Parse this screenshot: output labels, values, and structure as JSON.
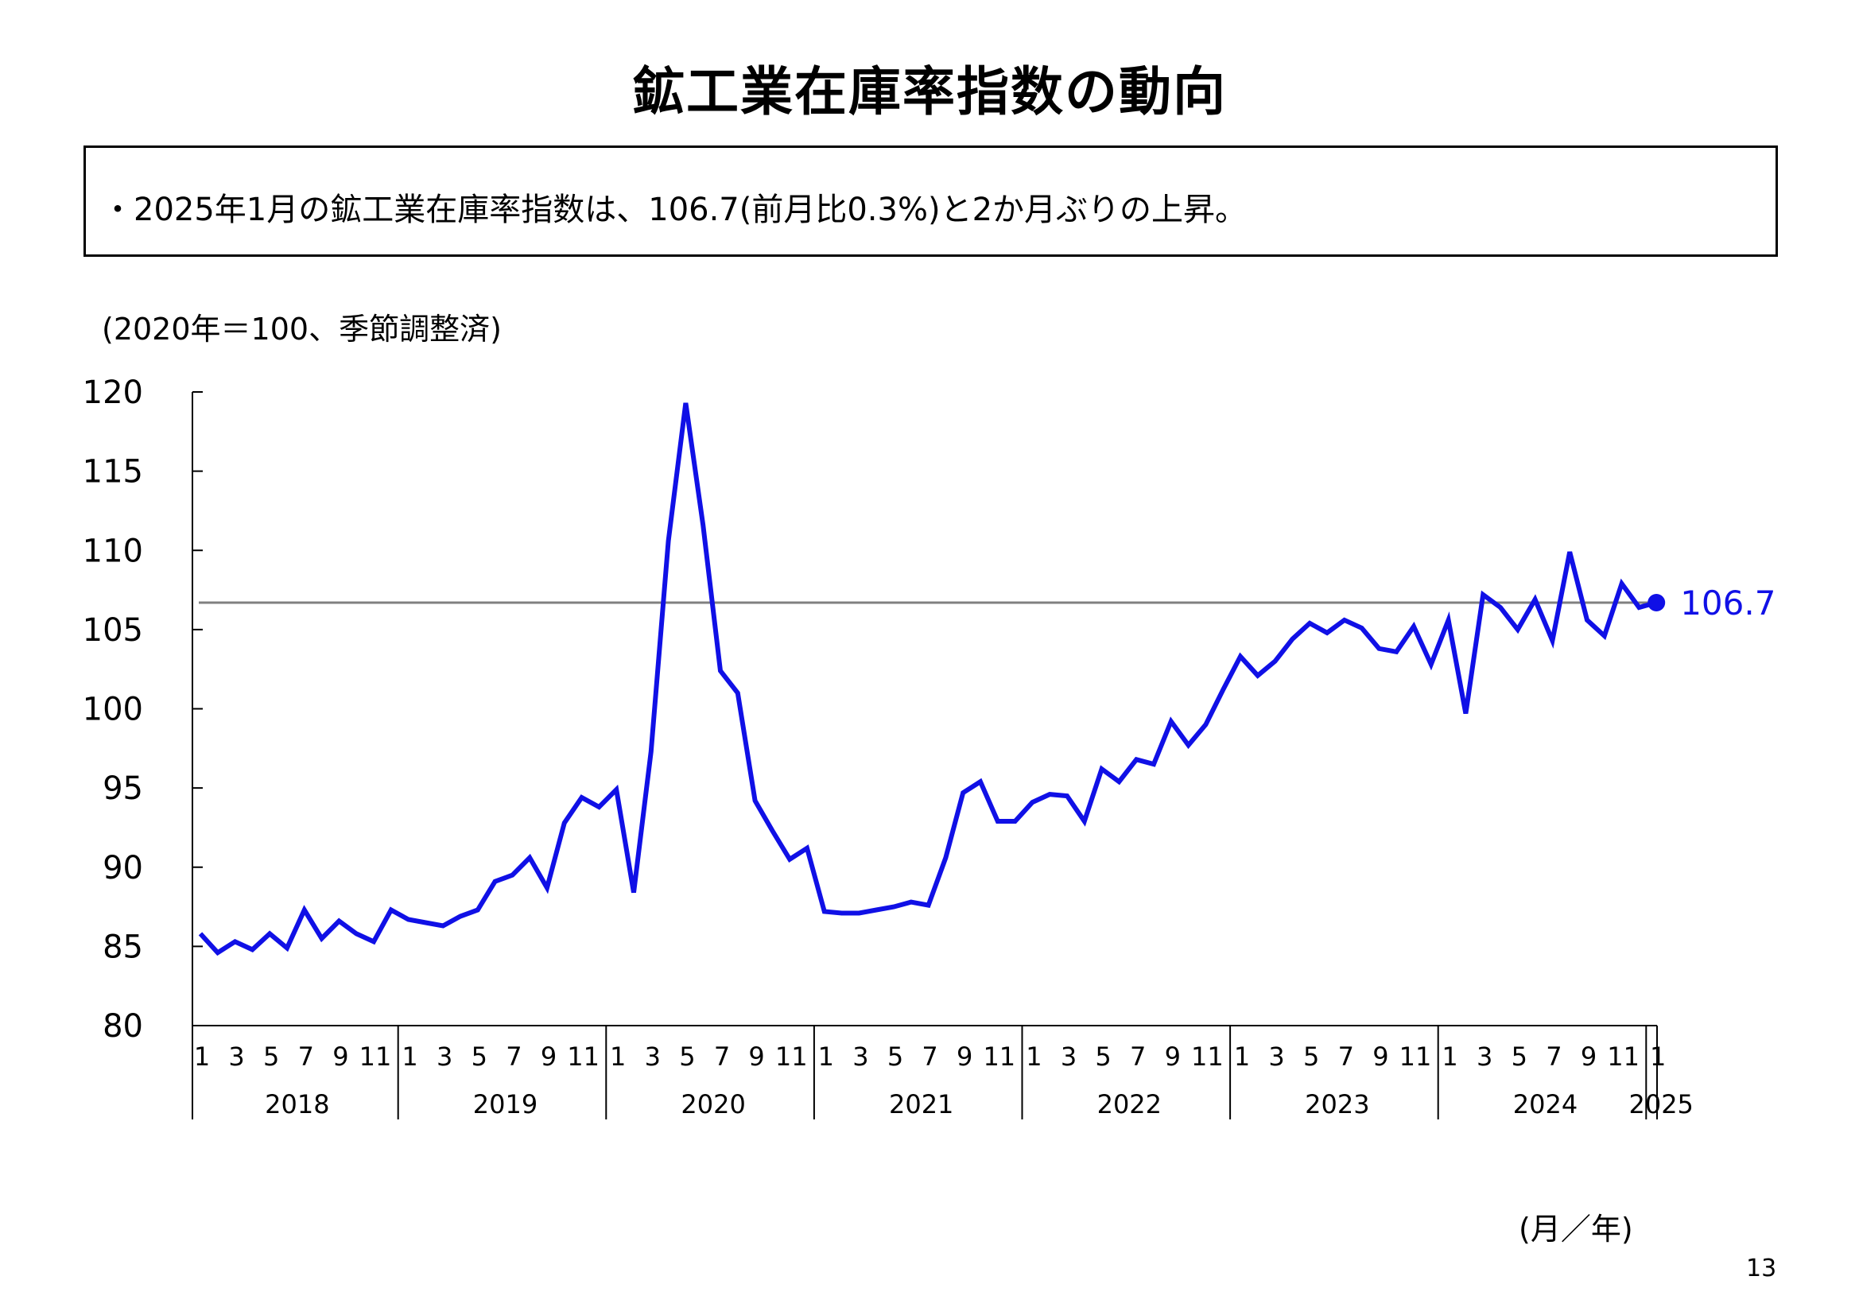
{
  "page": {
    "title": "鉱工業在庫率指数の動向",
    "summary": "・2025年1月の鉱工業在庫率指数は、106.7(前月比0.3%)と2か月ぶりの上昇。",
    "unit_label": "(2020年＝100、季節調整済)",
    "x_axis_caption": "(月／年)",
    "page_number": "13"
  },
  "chart_data": {
    "type": "line",
    "title": "鉱工業在庫率指数の動向",
    "ylabel": "(2020年＝100、季節調整済)",
    "xlabel": "(月／年)",
    "ylim": [
      80,
      120
    ],
    "yticks": [
      "80",
      "85",
      "90",
      "95",
      "100",
      "105",
      "110",
      "115",
      "120"
    ],
    "month_ticks": [
      "1",
      "3",
      "5",
      "7",
      "9",
      "11"
    ],
    "years": [
      "2018",
      "2019",
      "2020",
      "2021",
      "2022",
      "2023",
      "2024",
      "2025"
    ],
    "start": "2018-01",
    "reference_line": 106.7,
    "latest_label": "106.7",
    "series_color": "#1010e6",
    "reference_color": "#808080",
    "values": [
      85.8,
      84.6,
      85.3,
      84.8,
      85.8,
      84.9,
      87.3,
      85.5,
      86.6,
      85.8,
      85.3,
      87.3,
      86.7,
      86.5,
      86.3,
      86.9,
      87.3,
      89.1,
      89.5,
      90.6,
      88.7,
      92.8,
      94.4,
      93.8,
      94.9,
      88.4,
      97.3,
      110.6,
      119.3,
      111.6,
      102.4,
      101.0,
      94.2,
      92.3,
      90.5,
      91.2,
      87.2,
      87.1,
      87.1,
      87.3,
      87.5,
      87.8,
      87.6,
      90.6,
      94.7,
      95.4,
      92.9,
      92.9,
      94.1,
      94.6,
      94.5,
      92.9,
      96.2,
      95.4,
      96.8,
      96.5,
      99.2,
      97.7,
      99.0,
      101.2,
      103.3,
      102.1,
      103.0,
      104.4,
      105.4,
      104.8,
      105.6,
      105.1,
      103.8,
      103.6,
      105.2,
      102.8,
      105.6,
      99.7,
      107.2,
      106.4,
      105.0,
      106.9,
      104.3,
      109.9,
      105.6,
      104.6,
      107.9,
      106.4,
      106.7
    ]
  }
}
